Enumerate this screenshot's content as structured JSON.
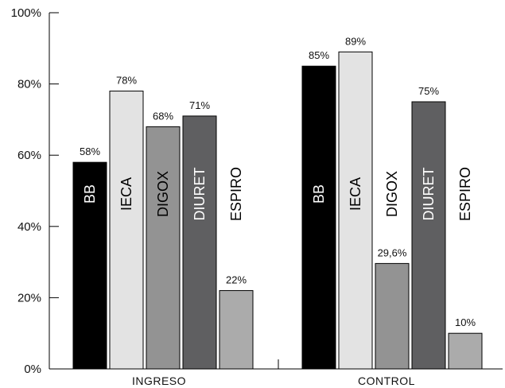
{
  "chart_data": {
    "type": "bar",
    "categories": [
      "INGRESO",
      "CONTROL"
    ],
    "ylim": [
      0,
      100
    ],
    "yticks": [
      "0%",
      "20%",
      "40%",
      "60%",
      "80%",
      "100%"
    ],
    "ytick_values": [
      0,
      20,
      40,
      60,
      80,
      100
    ],
    "grid": false,
    "series": [
      {
        "name": "BB",
        "values": [
          58,
          85
        ],
        "labels": [
          "58%",
          "85%"
        ],
        "color": "#000000",
        "text_color": "#ffffff"
      },
      {
        "name": "IECA",
        "values": [
          78,
          89
        ],
        "labels": [
          "78%",
          "89%"
        ],
        "color": "#e3e3e3",
        "text_color": "#000000"
      },
      {
        "name": "DIGOX",
        "values": [
          68,
          29.6
        ],
        "labels": [
          "68%",
          "29,6%"
        ],
        "color": "#939393",
        "text_color": "#000000"
      },
      {
        "name": "DIURET",
        "values": [
          71,
          75
        ],
        "labels": [
          "71%",
          "75%"
        ],
        "color": "#5f5f61",
        "text_color": "#ffffff"
      },
      {
        "name": "ESPIRO",
        "values": [
          22,
          10
        ],
        "labels": [
          "22%",
          "10%"
        ],
        "color": "#ababab",
        "text_color": "#000000"
      }
    ]
  }
}
